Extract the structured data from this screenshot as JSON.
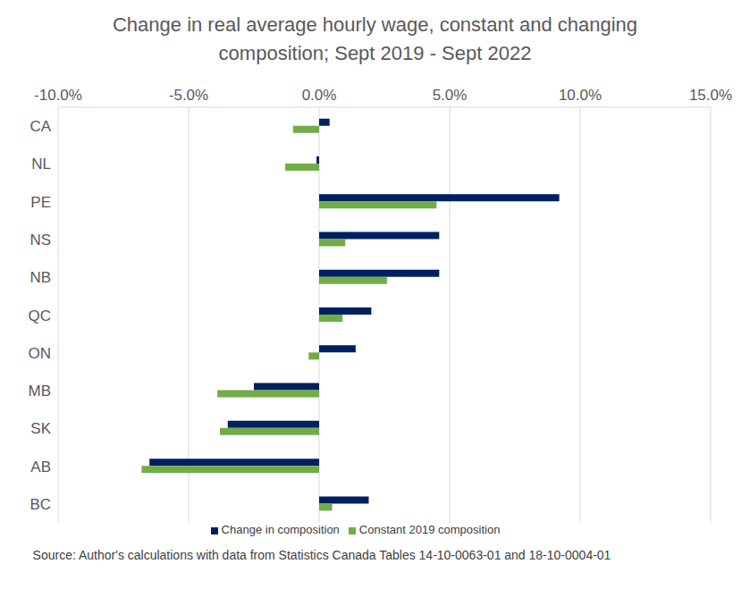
{
  "chart_data": {
    "type": "bar",
    "orientation": "horizontal",
    "title": "Change in real average hourly wage, constant and changing composition; Sept 2019 - Sept 2022",
    "source": "Source: Author's calculations with data from Statistics Canada Tables 14-10-0063-01 and 18-10-0004-01",
    "categories": [
      "CA",
      "NL",
      "PE",
      "NS",
      "NB",
      "QC",
      "ON",
      "MB",
      "SK",
      "AB",
      "BC"
    ],
    "series": [
      {
        "name": "Change in composition",
        "color": "#002060",
        "values": [
          0.4,
          -0.1,
          9.2,
          4.6,
          4.6,
          2.0,
          1.4,
          -2.5,
          -3.5,
          -6.5,
          1.9
        ]
      },
      {
        "name": "Constant 2019 composition",
        "color": "#70AD47",
        "values": [
          -1.0,
          -1.3,
          4.5,
          1.0,
          2.6,
          0.9,
          -0.4,
          -3.9,
          -3.8,
          -6.8,
          0.5
        ]
      }
    ],
    "xlim": [
      -10,
      15
    ],
    "xticks": [
      {
        "value": -10,
        "label": "-10.0%"
      },
      {
        "value": -5,
        "label": "-5.0%"
      },
      {
        "value": 0,
        "label": "0.0%"
      },
      {
        "value": 5,
        "label": "5.0%"
      },
      {
        "value": 10,
        "label": "10.0%"
      },
      {
        "value": 15,
        "label": "15.0%"
      }
    ],
    "grid": true,
    "legend": "bottom"
  }
}
